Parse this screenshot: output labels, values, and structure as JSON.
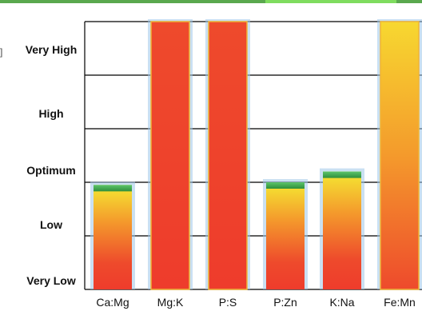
{
  "window": {
    "edge_mark": "]"
  },
  "chart_data": {
    "type": "bar",
    "title": "",
    "xlabel": "",
    "ylabel": "",
    "categories": [
      "Ca:Mg",
      "Mg:K",
      "P:S",
      "P:Zn",
      "K:Na",
      "Fe:Mn"
    ],
    "values": [
      1.95,
      5.0,
      5.0,
      2.0,
      2.2,
      5.0
    ],
    "ylim": [
      0,
      5
    ],
    "y_levels": [
      "Very Low",
      "Low",
      "Optimum",
      "High",
      "Very High"
    ],
    "y_level_values": [
      0,
      1,
      2,
      3,
      4
    ],
    "grid": true,
    "colors": {
      "bar_top": "#f4e832",
      "bar_mid": "#f49a2c",
      "bar_bottom": "#ee3c2c",
      "cap": "#2f9e44",
      "glow": "#9ec7e8",
      "grid": "#000000",
      "accent_bar": "#5aa84e"
    }
  }
}
